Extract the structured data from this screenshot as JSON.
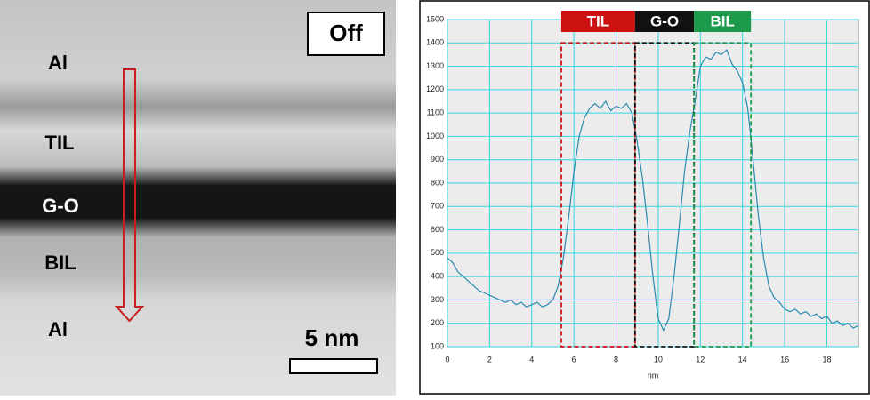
{
  "image": {
    "badge": "Off",
    "layers": [
      "Al",
      "TIL",
      "G-O",
      "BIL",
      "Al"
    ],
    "scale": "5 nm"
  },
  "chart_data": {
    "type": "line",
    "xlabel": "nm",
    "x": [
      0,
      0.25,
      0.5,
      0.75,
      1,
      1.25,
      1.5,
      1.75,
      2,
      2.25,
      2.5,
      2.75,
      3,
      3.25,
      3.5,
      3.75,
      4,
      4.25,
      4.5,
      4.75,
      5,
      5.25,
      5.5,
      5.75,
      6,
      6.25,
      6.5,
      6.75,
      7,
      7.25,
      7.5,
      7.75,
      8,
      8.25,
      8.5,
      8.75,
      9,
      9.25,
      9.5,
      9.75,
      10,
      10.25,
      10.5,
      10.75,
      11,
      11.25,
      11.5,
      11.75,
      12,
      12.25,
      12.5,
      12.75,
      13,
      13.25,
      13.5,
      13.75,
      14,
      14.25,
      14.5,
      14.75,
      15,
      15.25,
      15.5,
      15.75,
      16,
      16.25,
      16.5,
      16.75,
      17,
      17.25,
      17.5,
      17.75,
      18,
      18.25,
      18.5,
      18.75,
      19,
      19.25,
      19.5
    ],
    "series": [
      {
        "color": "#2a8ab0",
        "values": [
          480,
          460,
          420,
          400,
          380,
          360,
          340,
          330,
          320,
          310,
          300,
          290,
          300,
          280,
          290,
          270,
          280,
          290,
          270,
          280,
          300,
          360,
          480,
          650,
          850,
          1000,
          1080,
          1120,
          1140,
          1120,
          1150,
          1110,
          1130,
          1120,
          1140,
          1100,
          980,
          820,
          620,
          400,
          220,
          170,
          220,
          400,
          620,
          850,
          1020,
          1150,
          1300,
          1340,
          1330,
          1360,
          1350,
          1370,
          1310,
          1280,
          1230,
          1120,
          900,
          660,
          480,
          360,
          310,
          290,
          260,
          250,
          260,
          240,
          250,
          230,
          240,
          220,
          230,
          200,
          210,
          190,
          200,
          180,
          190
        ]
      }
    ],
    "regions": [
      {
        "label": "TIL",
        "color": "#cc1111",
        "xrange": [
          5.4,
          8.9
        ],
        "yrange": [
          100,
          1400
        ]
      },
      {
        "label": "G-O",
        "color": "#111111",
        "xrange": [
          8.9,
          11.7
        ],
        "yrange": [
          100,
          1400
        ]
      },
      {
        "label": "BIL",
        "color": "#1a9a4a",
        "xrange": [
          11.7,
          14.4
        ],
        "yrange": [
          100,
          1400
        ]
      }
    ],
    "xlim": [
      0,
      19.5
    ],
    "ylim": [
      100,
      1500
    ],
    "xticks": [
      0,
      2,
      4,
      6,
      8,
      10,
      12,
      14,
      16,
      18
    ],
    "yticks": [
      100,
      200,
      300,
      400,
      500,
      600,
      700,
      800,
      900,
      1000,
      1100,
      1200,
      1300,
      1400,
      1500
    ],
    "grid": true,
    "grid_color": "#33d6e0"
  }
}
